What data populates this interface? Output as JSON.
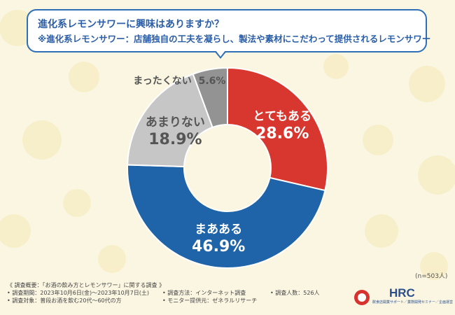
{
  "question": {
    "line1": "進化系レモンサワーに興味はありますか？",
    "line2": "※進化系レモンサワー：店舗独自の工夫を凝らし、製法や素材にこだわって提供されるレモンサワー"
  },
  "chart_data": {
    "type": "pie",
    "donut": true,
    "start_angle_deg": 0,
    "direction": "clockwise",
    "slices": [
      {
        "label": "とてもある",
        "value": 28.6,
        "display": "28.6%",
        "color": "#d8372f"
      },
      {
        "label": "まあある",
        "value": 46.9,
        "display": "46.9%",
        "color": "#1f63a8"
      },
      {
        "label": "あまりない",
        "value": 18.9,
        "display": "18.9%",
        "color": "#c6c6c6"
      },
      {
        "label": "まったくない",
        "value": 5.6,
        "display": "5.6%",
        "color": "#939393"
      }
    ],
    "label_colors": {
      "とてもある": "#ffffff",
      "まあある": "#ffffff",
      "あまりない": "#555555",
      "まったくない": "#555555"
    }
  },
  "n_note": "(n=503人)",
  "footer": {
    "line1": "《 調査概要：「お酒の飲み方とレモンサワー」に関する調査 》",
    "period": "• 調査期間：2023年10月6日(金)～2023年10月7日(土)",
    "method": "• 調査方法：インターネット調査",
    "count": "• 調査人数：526人",
    "target": "• 調査対象：普段お酒を飲む20代～60代の方",
    "provider": "• モニター提供元：ゼネラルリサーチ"
  },
  "logo": {
    "name": "HRC",
    "subtitle": "飲食店開業サポート／業態開発セミナー／企画運営"
  }
}
